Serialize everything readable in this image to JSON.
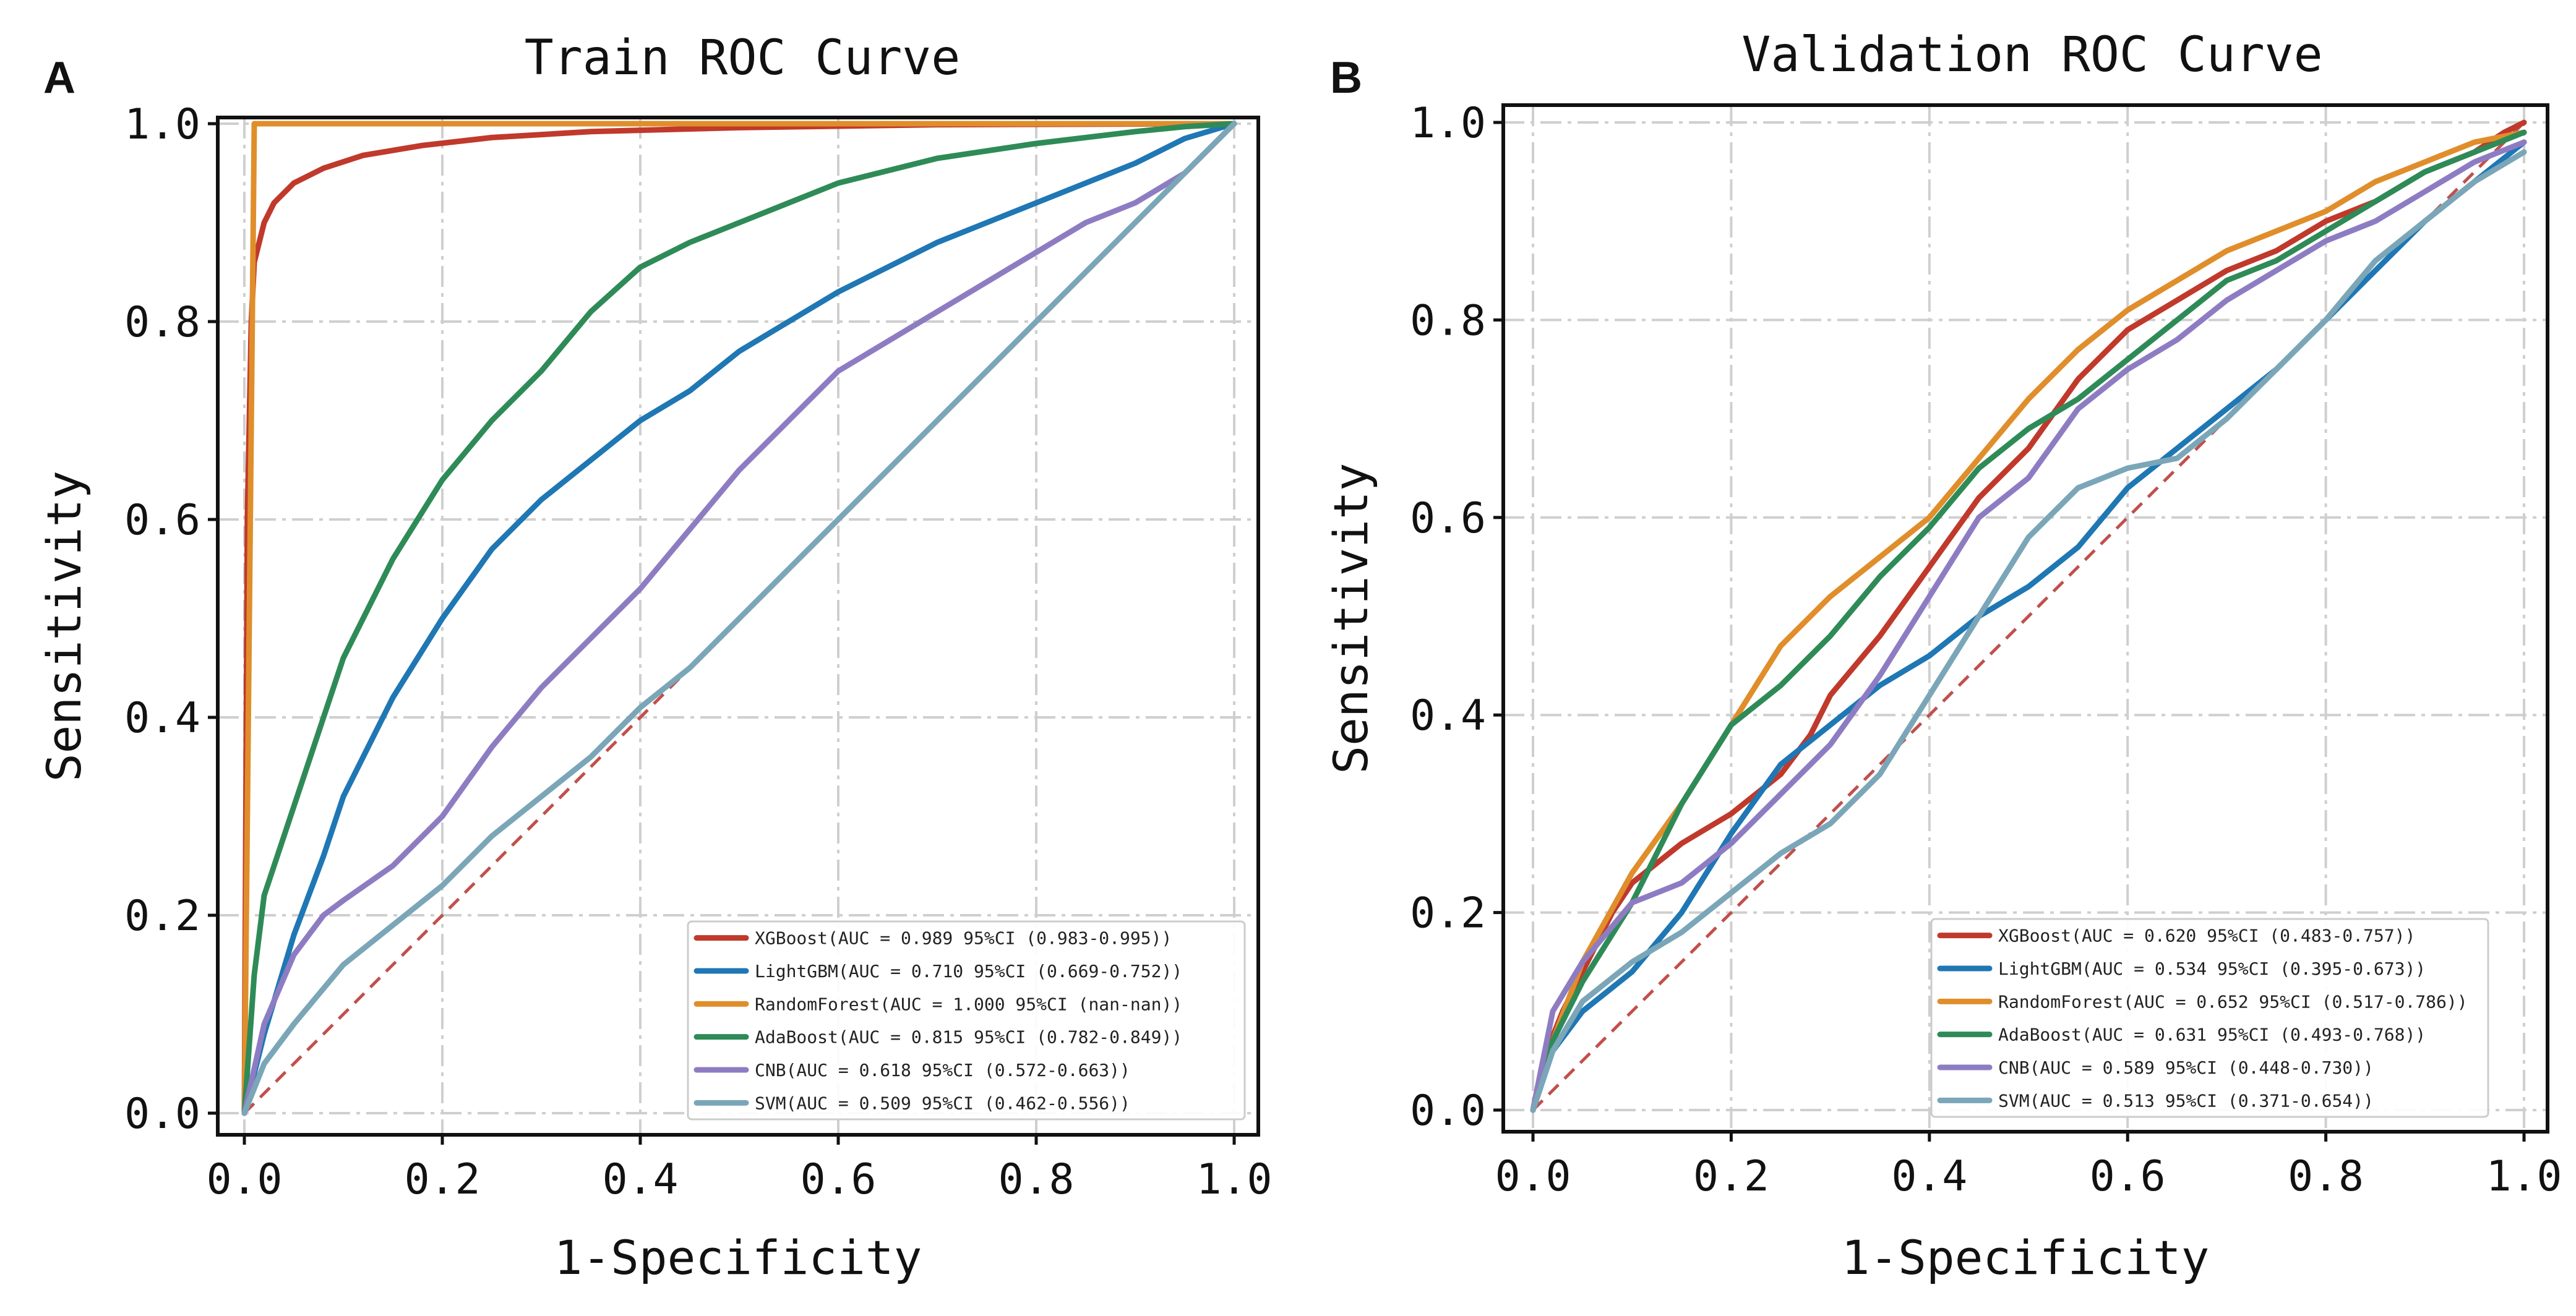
{
  "chart_data": [
    {
      "type": "line",
      "panel_label": "A",
      "title": "Train ROC Curve",
      "xlabel": "1-Specificity",
      "ylabel": "Sensitivity",
      "xlim": [
        0,
        1
      ],
      "ylim": [
        0,
        1
      ],
      "xticks": [
        "0.0",
        "0.2",
        "0.4",
        "0.6",
        "0.8",
        "1.0"
      ],
      "yticks": [
        "0.0",
        "0.2",
        "0.4",
        "0.6",
        "0.8",
        "1.0"
      ],
      "grid": true,
      "legend_position": "bottom-right",
      "diagonal": {
        "x": [
          0,
          1
        ],
        "y": [
          0,
          1
        ],
        "color": "#c0504d"
      },
      "series": [
        {
          "name": "XGBoost",
          "legend": "XGBoost(AUC = 0.989 95%CI (0.983-0.995))",
          "color": "#c0392b",
          "x": [
            0,
            0.003,
            0.007,
            0.01,
            0.02,
            0.03,
            0.05,
            0.08,
            0.12,
            0.18,
            0.25,
            0.35,
            0.5,
            0.7,
            1.0
          ],
          "y": [
            0,
            0.6,
            0.8,
            0.86,
            0.9,
            0.92,
            0.94,
            0.955,
            0.968,
            0.978,
            0.986,
            0.992,
            0.996,
            0.999,
            1.0
          ]
        },
        {
          "name": "LightGBM",
          "legend": "LightGBM(AUC = 0.710 95%CI (0.669-0.752))",
          "color": "#1f77b4",
          "x": [
            0,
            0.02,
            0.05,
            0.08,
            0.1,
            0.15,
            0.2,
            0.25,
            0.3,
            0.35,
            0.4,
            0.45,
            0.5,
            0.55,
            0.6,
            0.65,
            0.7,
            0.75,
            0.8,
            0.85,
            0.9,
            0.95,
            1.0
          ],
          "y": [
            0,
            0.08,
            0.18,
            0.26,
            0.32,
            0.42,
            0.5,
            0.57,
            0.62,
            0.66,
            0.7,
            0.73,
            0.77,
            0.8,
            0.83,
            0.855,
            0.88,
            0.9,
            0.92,
            0.94,
            0.96,
            0.985,
            1.0
          ]
        },
        {
          "name": "RandomForest",
          "legend": "RandomForest(AUC = 1.000 95%CI (nan-nan))",
          "color": "#e08e2b",
          "x": [
            0,
            0.01,
            1.0
          ],
          "y": [
            0,
            1.0,
            1.0
          ]
        },
        {
          "name": "AdaBoost",
          "legend": "AdaBoost(AUC = 0.815 95%CI (0.782-0.849))",
          "color": "#2e8b57",
          "x": [
            0,
            0.01,
            0.02,
            0.05,
            0.08,
            0.1,
            0.15,
            0.2,
            0.25,
            0.3,
            0.35,
            0.4,
            0.45,
            0.5,
            0.6,
            0.7,
            0.8,
            0.9,
            0.95,
            1.0
          ],
          "y": [
            0,
            0.14,
            0.22,
            0.31,
            0.4,
            0.46,
            0.56,
            0.64,
            0.7,
            0.75,
            0.81,
            0.855,
            0.88,
            0.9,
            0.94,
            0.965,
            0.98,
            0.992,
            0.997,
            1.0
          ]
        },
        {
          "name": "CNB",
          "legend": "CNB(AUC = 0.618 95%CI (0.572-0.663))",
          "color": "#8e7cc3",
          "x": [
            0,
            0.02,
            0.05,
            0.08,
            0.1,
            0.15,
            0.2,
            0.25,
            0.3,
            0.35,
            0.4,
            0.45,
            0.5,
            0.55,
            0.6,
            0.65,
            0.7,
            0.75,
            0.8,
            0.85,
            0.9,
            0.95,
            1.0
          ],
          "y": [
            0,
            0.09,
            0.16,
            0.2,
            0.215,
            0.25,
            0.3,
            0.37,
            0.43,
            0.48,
            0.53,
            0.59,
            0.65,
            0.7,
            0.75,
            0.78,
            0.81,
            0.84,
            0.87,
            0.9,
            0.92,
            0.95,
            1.0
          ]
        },
        {
          "name": "SVM",
          "legend": "SVM(AUC = 0.509 95%CI (0.462-0.556))",
          "color": "#7aa6b8",
          "x": [
            0,
            0.02,
            0.05,
            0.1,
            0.15,
            0.2,
            0.25,
            0.3,
            0.35,
            0.4,
            0.45,
            0.5,
            0.55,
            0.6,
            0.65,
            0.7,
            0.75,
            0.8,
            0.85,
            0.9,
            0.95,
            1.0
          ],
          "y": [
            0,
            0.05,
            0.09,
            0.15,
            0.19,
            0.23,
            0.28,
            0.32,
            0.36,
            0.41,
            0.45,
            0.5,
            0.55,
            0.6,
            0.65,
            0.7,
            0.75,
            0.8,
            0.85,
            0.9,
            0.95,
            1.0
          ]
        }
      ]
    },
    {
      "type": "line",
      "panel_label": "B",
      "title": "Validation ROC Curve",
      "xlabel": "1-Specificity",
      "ylabel": "Sensitivity",
      "xlim": [
        0,
        1
      ],
      "ylim": [
        0,
        1
      ],
      "xticks": [
        "0.0",
        "0.2",
        "0.4",
        "0.6",
        "0.8",
        "1.0"
      ],
      "yticks": [
        "0.0",
        "0.2",
        "0.4",
        "0.6",
        "0.8",
        "1.0"
      ],
      "grid": true,
      "legend_position": "bottom-right",
      "diagonal": {
        "x": [
          0,
          1
        ],
        "y": [
          0,
          1
        ],
        "color": "#c0504d"
      },
      "series": [
        {
          "name": "XGBoost",
          "legend": "XGBoost(AUC = 0.620 95%CI (0.483-0.757))",
          "color": "#c0392b",
          "x": [
            0,
            0.01,
            0.03,
            0.05,
            0.08,
            0.1,
            0.15,
            0.2,
            0.25,
            0.28,
            0.3,
            0.35,
            0.4,
            0.45,
            0.5,
            0.55,
            0.6,
            0.65,
            0.7,
            0.75,
            0.8,
            0.85,
            0.9,
            0.95,
            0.98,
            1.0
          ],
          "y": [
            0,
            0.05,
            0.1,
            0.14,
            0.2,
            0.23,
            0.27,
            0.3,
            0.34,
            0.38,
            0.42,
            0.48,
            0.55,
            0.62,
            0.67,
            0.74,
            0.79,
            0.82,
            0.85,
            0.87,
            0.9,
            0.92,
            0.95,
            0.97,
            0.99,
            1.0
          ]
        },
        {
          "name": "LightGBM",
          "legend": "LightGBM(AUC = 0.534 95%CI (0.395-0.673))",
          "color": "#1f77b4",
          "x": [
            0,
            0.02,
            0.05,
            0.1,
            0.15,
            0.2,
            0.25,
            0.3,
            0.35,
            0.4,
            0.45,
            0.5,
            0.55,
            0.6,
            0.65,
            0.7,
            0.75,
            0.8,
            0.85,
            0.9,
            0.95,
            1.0
          ],
          "y": [
            0,
            0.06,
            0.1,
            0.14,
            0.2,
            0.28,
            0.35,
            0.39,
            0.43,
            0.46,
            0.5,
            0.53,
            0.57,
            0.63,
            0.67,
            0.71,
            0.75,
            0.8,
            0.85,
            0.9,
            0.94,
            0.98
          ]
        },
        {
          "name": "RandomForest",
          "legend": "RandomForest(AUC = 0.652 95%CI (0.517-0.786))",
          "color": "#e08e2b",
          "x": [
            0,
            0.02,
            0.05,
            0.1,
            0.15,
            0.2,
            0.25,
            0.3,
            0.35,
            0.4,
            0.45,
            0.5,
            0.55,
            0.6,
            0.65,
            0.7,
            0.75,
            0.8,
            0.85,
            0.9,
            0.95,
            1.0
          ],
          "y": [
            0,
            0.07,
            0.15,
            0.24,
            0.31,
            0.39,
            0.47,
            0.52,
            0.56,
            0.6,
            0.66,
            0.72,
            0.77,
            0.81,
            0.84,
            0.87,
            0.89,
            0.91,
            0.94,
            0.96,
            0.98,
            0.99
          ]
        },
        {
          "name": "AdaBoost",
          "legend": "AdaBoost(AUC = 0.631 95%CI (0.493-0.768))",
          "color": "#2e8b57",
          "x": [
            0,
            0.02,
            0.05,
            0.1,
            0.15,
            0.2,
            0.25,
            0.3,
            0.35,
            0.4,
            0.45,
            0.5,
            0.55,
            0.6,
            0.65,
            0.7,
            0.75,
            0.8,
            0.85,
            0.9,
            0.95,
            1.0
          ],
          "y": [
            0,
            0.07,
            0.13,
            0.21,
            0.31,
            0.39,
            0.43,
            0.48,
            0.54,
            0.59,
            0.65,
            0.69,
            0.72,
            0.76,
            0.8,
            0.84,
            0.86,
            0.89,
            0.92,
            0.95,
            0.97,
            0.99
          ]
        },
        {
          "name": "CNB",
          "legend": "CNB(AUC = 0.589 95%CI (0.448-0.730))",
          "color": "#8e7cc3",
          "x": [
            0,
            0.02,
            0.05,
            0.1,
            0.15,
            0.2,
            0.25,
            0.3,
            0.35,
            0.4,
            0.45,
            0.5,
            0.55,
            0.6,
            0.65,
            0.7,
            0.75,
            0.8,
            0.85,
            0.9,
            0.95,
            1.0
          ],
          "y": [
            0,
            0.1,
            0.15,
            0.21,
            0.23,
            0.27,
            0.32,
            0.37,
            0.44,
            0.52,
            0.6,
            0.64,
            0.71,
            0.75,
            0.78,
            0.82,
            0.85,
            0.88,
            0.9,
            0.93,
            0.96,
            0.98
          ]
        },
        {
          "name": "SVM",
          "legend": "SVM(AUC = 0.513 95%CI (0.371-0.654))",
          "color": "#7aa6b8",
          "x": [
            0,
            0.02,
            0.05,
            0.1,
            0.15,
            0.2,
            0.25,
            0.3,
            0.35,
            0.4,
            0.45,
            0.5,
            0.55,
            0.6,
            0.65,
            0.7,
            0.75,
            0.8,
            0.85,
            0.9,
            0.95,
            1.0
          ],
          "y": [
            0,
            0.06,
            0.11,
            0.15,
            0.18,
            0.22,
            0.26,
            0.29,
            0.34,
            0.42,
            0.5,
            0.58,
            0.63,
            0.65,
            0.66,
            0.7,
            0.75,
            0.8,
            0.86,
            0.9,
            0.94,
            0.97
          ]
        }
      ]
    }
  ]
}
